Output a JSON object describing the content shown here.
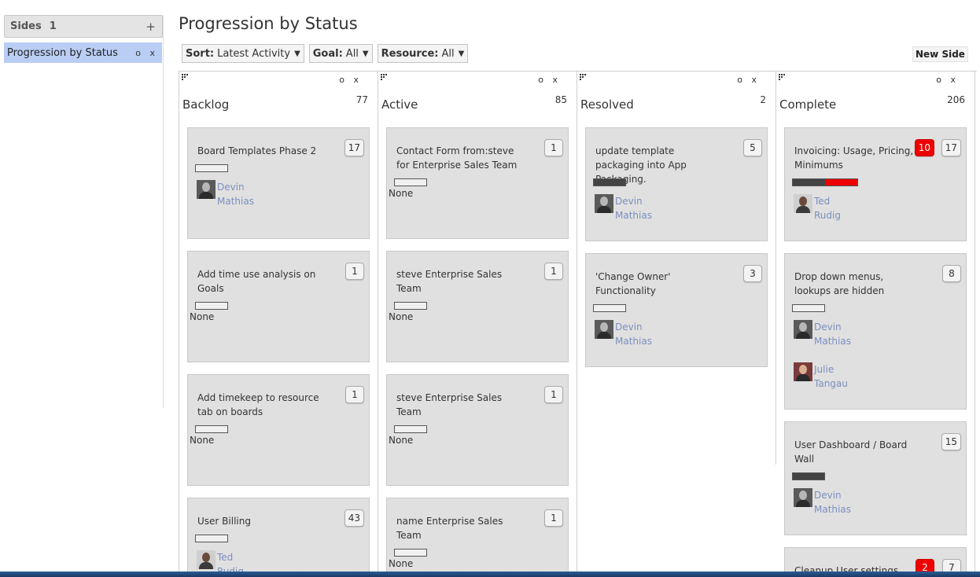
{
  "sidebar": {
    "title": "Sides",
    "count": "1",
    "add_label": "+",
    "items": [
      {
        "label": "Progression by Status",
        "controls": "o x"
      }
    ]
  },
  "page": {
    "title": "Progression by Status",
    "new_side_label": "New Side"
  },
  "filters": [
    {
      "label": "Sort:",
      "value": "Latest Activity"
    },
    {
      "label": "Goal:",
      "value": "All"
    },
    {
      "label": "Resource:",
      "value": "All"
    }
  ],
  "columns": [
    {
      "title": "Backlog",
      "count": "77",
      "controls": "o x",
      "cards": [
        {
          "title": "Board Templates Phase 2",
          "badge": "17",
          "progress": 0,
          "assignee": [
            "Devin",
            "Mathias"
          ]
        },
        {
          "title": "Add time use analysis on Goals",
          "badge": "1",
          "progress": 0,
          "none": "None"
        },
        {
          "title": "Add timekeep to resource tab on boards",
          "badge": "1",
          "progress": 0,
          "none": "None"
        },
        {
          "title": "User Billing",
          "badge": "43",
          "progress": 0,
          "assignee": [
            "Ted",
            "Rudig"
          ]
        }
      ]
    },
    {
      "title": "Active",
      "count": "85",
      "controls": "o x",
      "cards": [
        {
          "title": "Contact Form from:steve for Enterprise Sales Team",
          "badge": "1",
          "progress": 0,
          "none": "None"
        },
        {
          "title": "steve Enterprise Sales Team",
          "badge": "1",
          "progress": 0,
          "none": "None"
        },
        {
          "title": "steve Enterprise Sales Team",
          "badge": "1",
          "progress": 0,
          "none": "None"
        },
        {
          "title": "name Enterprise Sales Team",
          "badge": "1",
          "progress": 0,
          "none": "None"
        }
      ]
    },
    {
      "title": "Resolved",
      "count": "2",
      "controls": "o x",
      "cards": [
        {
          "title": "update template packaging into App Packaging.",
          "badge": "5",
          "progress": 1.0,
          "assignee": [
            "Devin",
            "Mathias"
          ]
        },
        {
          "title": "'Change Owner' Functionality",
          "badge": "3",
          "progress": 0,
          "assignee": [
            "Devin",
            "Mathias"
          ]
        }
      ]
    },
    {
      "title": "Complete",
      "count": "206",
      "controls": "o x",
      "cards": [
        {
          "title": "Invoicing: Usage, Pricing, Minimums",
          "badge": "17",
          "red_badge": "10",
          "progress": 0.5,
          "progress_overdue": 0.5,
          "assignee": [
            "Ted",
            "Rudig"
          ]
        },
        {
          "title": "Drop down menus, lookups are hidden",
          "badge": "8",
          "progress": 0,
          "assignee": [
            "Devin",
            "Mathias"
          ],
          "assignee2": [
            "Julie",
            "Tangau"
          ]
        },
        {
          "title": "User Dashboard / Board Wall",
          "badge": "15",
          "progress": 1.0,
          "assignee": [
            "Devin",
            "Mathias"
          ]
        },
        {
          "title": "Cleanup User settings",
          "badge": "7",
          "red_badge": "2"
        }
      ]
    }
  ],
  "colors": {
    "selected_side": "#b9cdf5",
    "card_bg": "#e0e0e0",
    "assignee_link": "#7b8fbf",
    "overdue_red": "#ee0000"
  }
}
